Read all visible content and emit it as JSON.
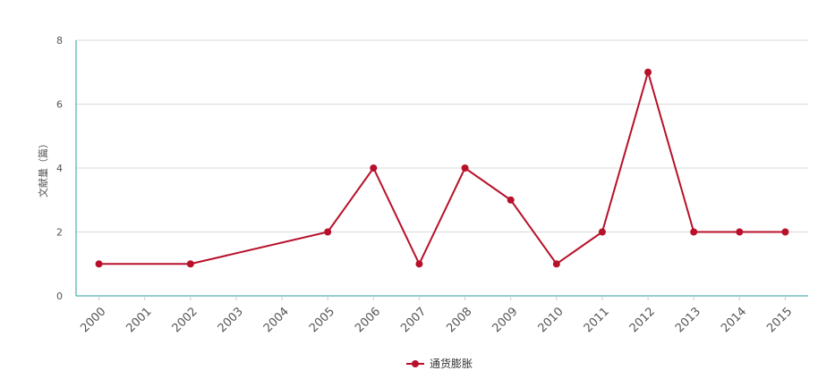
{
  "chart_data": {
    "type": "line",
    "y_label": "文献量（篇）",
    "x": [
      2000,
      2002,
      2005,
      2006,
      2007,
      2008,
      2009,
      2010,
      2011,
      2012,
      2013,
      2014,
      2015
    ],
    "series": [
      {
        "name": "通货膨胀",
        "color": "#b8102a",
        "values": [
          1,
          1,
          2,
          4,
          1,
          4,
          3,
          1,
          2,
          7,
          2,
          2,
          2
        ]
      }
    ],
    "xlim": [
      1999.5,
      2015.5
    ],
    "xticks": [
      2000,
      2001,
      2002,
      2003,
      2004,
      2005,
      2006,
      2007,
      2008,
      2009,
      2010,
      2011,
      2012,
      2013,
      2014,
      2015
    ],
    "ylim": [
      0,
      8
    ],
    "yticks": [
      0,
      2,
      4,
      6,
      8
    ],
    "grid": true,
    "legend": "bottom"
  }
}
